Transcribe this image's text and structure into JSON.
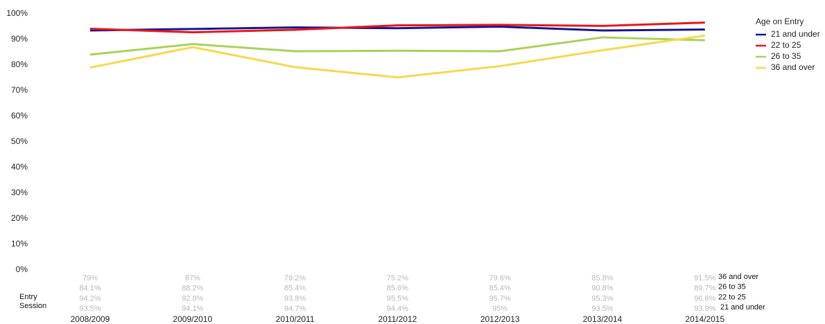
{
  "chart_data": {
    "type": "line",
    "x_label": "Entry Session",
    "legend_title": "Age on Entry",
    "legend": "right",
    "categories": [
      "2008/2009",
      "2009/2010",
      "2010/2011",
      "2011/2012",
      "2012/2013",
      "2013/2014",
      "2014/2015"
    ],
    "series": [
      {
        "name": "21 and under",
        "color": "#15158f",
        "values": [
          93.5,
          94.1,
          94.7,
          94.4,
          95,
          93.5,
          93.9
        ],
        "value_labels": [
          "93.5%",
          "94.1%",
          "94.7%",
          "94.4%",
          "95%",
          "93.5%",
          "93.9%"
        ]
      },
      {
        "name": "22 to 25",
        "color": "#e8161b",
        "values": [
          94.2,
          92.8,
          93.8,
          95.5,
          95.7,
          95.3,
          96.6
        ],
        "value_labels": [
          "94.2%",
          "92.8%",
          "93.8%",
          "95.5%",
          "95.7%",
          "95.3%",
          "96.6%"
        ]
      },
      {
        "name": "26 to 35",
        "color": "#a9d15a",
        "values": [
          84.1,
          88.2,
          85.4,
          85.6,
          85.4,
          90.8,
          89.7
        ],
        "value_labels": [
          "84.1%",
          "88.2%",
          "85.4%",
          "85.6%",
          "85.4%",
          "90.8%",
          "89.7%"
        ]
      },
      {
        "name": "36 and over",
        "color": "#f8d84a",
        "values": [
          79,
          87,
          79.2,
          75.2,
          79.6,
          85.8,
          91.5
        ],
        "value_labels": [
          "79%",
          "87%",
          "79.2%",
          "75.2%",
          "79.6%",
          "85.8%",
          "91.5%"
        ]
      }
    ],
    "ylim": [
      0,
      100
    ],
    "yticks": [
      {
        "value": 0,
        "label": "0%"
      },
      {
        "value": 10,
        "label": "10%"
      },
      {
        "value": 20,
        "label": "20%"
      },
      {
        "value": 30,
        "label": "30%"
      },
      {
        "value": 40,
        "label": "40%"
      },
      {
        "value": 50,
        "label": "50%"
      },
      {
        "value": 60,
        "label": "60%"
      },
      {
        "value": 70,
        "label": "70%"
      },
      {
        "value": 80,
        "label": "80%"
      },
      {
        "value": 90,
        "label": "90%"
      },
      {
        "value": 100,
        "label": "100%"
      }
    ],
    "grid": false
  }
}
